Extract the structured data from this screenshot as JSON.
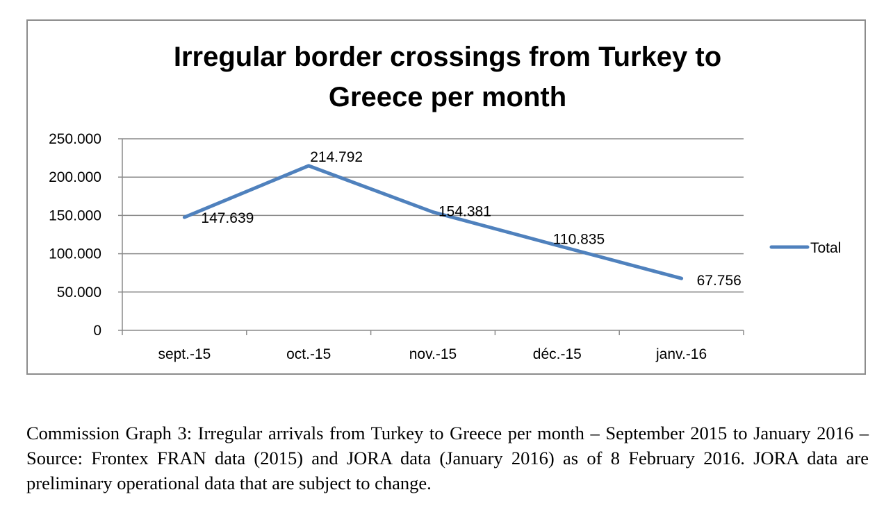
{
  "chart_data": {
    "type": "line",
    "title_lines": [
      "Irregular border crossings from Turkey to",
      "Greece per month"
    ],
    "categories": [
      "sept.-15",
      "oct.-15",
      "nov.-15",
      "déc.-15",
      "janv.-16"
    ],
    "series": [
      {
        "name": "Total",
        "values": [
          147639,
          214792,
          154381,
          110835,
          67756
        ],
        "value_labels": [
          "147.639",
          "214.792",
          "154.381",
          "110.835",
          "67.756"
        ],
        "color": "#4f81bd"
      }
    ],
    "y_ticks": [
      0,
      50000,
      100000,
      150000,
      200000,
      250000
    ],
    "y_tick_labels": [
      "0",
      "50.000",
      "100.000",
      "150.000",
      "200.000",
      "250.000"
    ],
    "ylim": [
      0,
      250000
    ],
    "grid": true,
    "legend_position": "right"
  },
  "caption": "Commission Graph 3: Irregular arrivals from Turkey to Greece per month – September 2015 to January 2016 – Source: Frontex FRAN data (2015) and JORA data (January 2016) as of 8 February 2016. JORA data are preliminary operational data that are subject to change."
}
